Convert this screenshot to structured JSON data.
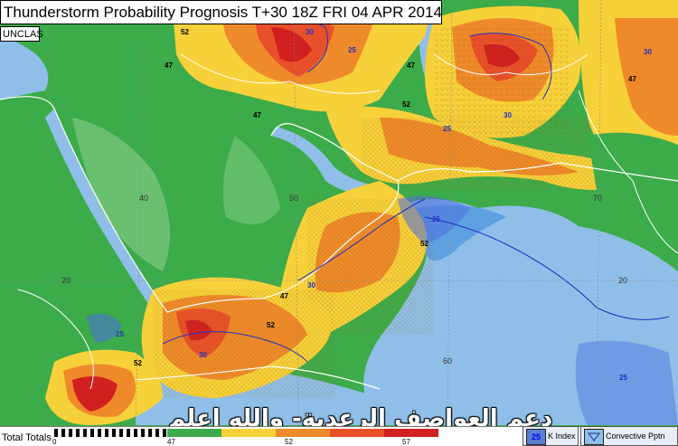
{
  "title": "Thunderstorm Probability Prognosis T+30 18Z FRI 04 APR 2014",
  "classification": "UNCLAS",
  "legend": {
    "total_totals_label": "Total Totals",
    "scale_ticks": [
      "0",
      "47",
      "52",
      "57"
    ],
    "k_index_label": "K Index",
    "k_index_sample": "25",
    "convective_label": "Convective Pptn"
  },
  "watermark_text": "دعم العواصف الرعدية- والله اعلم",
  "grid_labels": {
    "lat_20": "20",
    "lon_40": "40",
    "lon_50": "50",
    "lon_60": "60",
    "lon_70": "70",
    "lat_20_right": "20"
  },
  "contour_labels": [
    "52",
    "47",
    "30",
    "25",
    "47",
    "52",
    "30",
    "25",
    "47",
    "52",
    "30",
    "25",
    "47",
    "52",
    "30",
    "25",
    "52",
    "47",
    "30",
    "25"
  ],
  "colors": {
    "land_green": "#3cab4a",
    "light_green": "#8fd28f",
    "sea": "#8fbfe8",
    "deep_sea": "#5fa0e0",
    "yellow": "#f7d13a",
    "orange": "#ef8a2a",
    "red_orange": "#e8502a",
    "red": "#d02020",
    "dark_red": "#b01010",
    "blue_zone": "#4a6fe0"
  },
  "map_layers": {
    "land_color": "green",
    "sea_color": "blue"
  }
}
